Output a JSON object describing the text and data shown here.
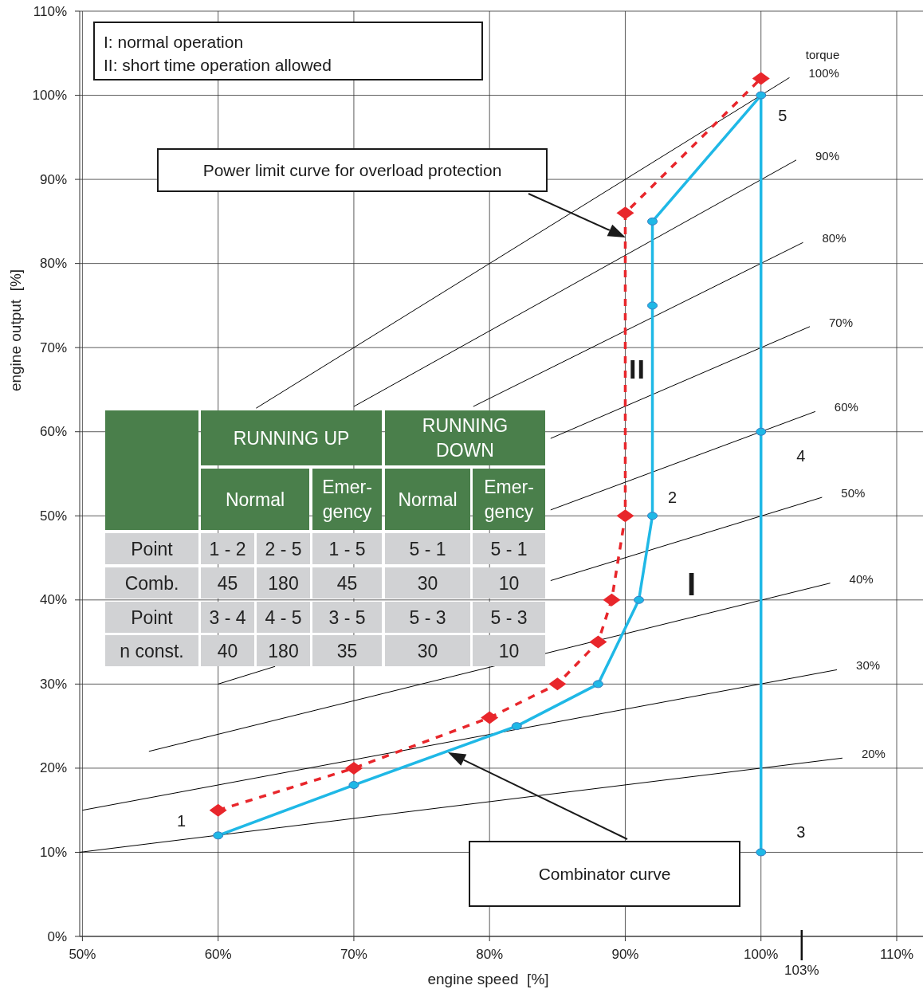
{
  "chart_data": [
    {
      "type": "line",
      "xlabel": "engine speed  [%]",
      "ylabel": "engine output  [%]",
      "xlim": [
        49.8,
        110
      ],
      "ylim": [
        0,
        110
      ],
      "xticks": [
        {
          "value": 50,
          "label": "50%"
        },
        {
          "value": 60,
          "label": "60%"
        },
        {
          "value": 70,
          "label": "70%"
        },
        {
          "value": 80,
          "label": "80%"
        },
        {
          "value": 90,
          "label": "90%"
        },
        {
          "value": 100,
          "label": "100%"
        },
        {
          "value": 110,
          "label": "110%"
        }
      ],
      "yticks": [
        {
          "value": 0,
          "label": "0%"
        },
        {
          "value": 10,
          "label": "10%"
        },
        {
          "value": 20,
          "label": "20%"
        },
        {
          "value": 30,
          "label": "30%"
        },
        {
          "value": 40,
          "label": "40%"
        },
        {
          "value": 50,
          "label": "50%"
        },
        {
          "value": 60,
          "label": "60%"
        },
        {
          "value": 70,
          "label": "70%"
        },
        {
          "value": 80,
          "label": "80%"
        },
        {
          "value": 90,
          "label": "90%"
        },
        {
          "value": 100,
          "label": "100%"
        },
        {
          "value": 110,
          "label": "110%"
        }
      ],
      "grid": true,
      "ref_lines": [
        {
          "axis": "x",
          "value": 103,
          "label": "103%"
        }
      ],
      "series": [
        {
          "name": "100%",
          "color": "#000000",
          "marker": "none",
          "line_style": "solid",
          "x": [
            62.8,
            102.1
          ],
          "values": [
            62.8,
            102.1
          ]
        },
        {
          "name": "90%",
          "color": "#000000",
          "marker": "none",
          "line_style": "solid",
          "x": [
            70,
            102.6
          ],
          "values": [
            63,
            92.3
          ]
        },
        {
          "name": "80%",
          "color": "#000000",
          "marker": "none",
          "line_style": "solid",
          "x": [
            78.8,
            103.1
          ],
          "values": [
            63,
            82.5
          ]
        },
        {
          "name": "70%",
          "color": "#000000",
          "marker": "none",
          "line_style": "solid",
          "x": [
            84.5,
            103.6
          ],
          "values": [
            59.2,
            72.5
          ]
        },
        {
          "name": "60%",
          "color": "#000000",
          "marker": "none",
          "line_style": "solid",
          "x": [
            84.5,
            104
          ],
          "values": [
            50.7,
            62.4
          ]
        },
        {
          "name": "50%",
          "color": "#000000",
          "marker": "none",
          "line_style": "solid",
          "x": [
            60,
            64.2,
            73,
            84.5,
            104.5
          ],
          "values": [
            30,
            32.1,
            null,
            42.3,
            52.2
          ]
        },
        {
          "name": "40%",
          "color": "#000000",
          "marker": "none",
          "line_style": "solid",
          "x": [
            54.9,
            105.1
          ],
          "values": [
            22,
            42
          ]
        },
        {
          "name": "30%",
          "color": "#000000",
          "marker": "none",
          "line_style": "solid",
          "x": [
            50,
            105.6
          ],
          "values": [
            15,
            31.7
          ]
        },
        {
          "name": "20%",
          "color": "#000000",
          "marker": "none",
          "line_style": "solid",
          "x": [
            49.8,
            106
          ],
          "values": [
            10,
            21.2
          ]
        },
        {
          "color": "#e8262b",
          "marker": "diamond",
          "line_style": "dashed",
          "x": [
            60,
            70,
            80,
            85,
            88,
            89,
            90,
            90,
            100
          ],
          "values": [
            15,
            20,
            26,
            30,
            35,
            40,
            50,
            86,
            102
          ]
        },
        {
          "color": "#1fb8e6",
          "marker": "circle",
          "line_style": "solid",
          "x": [
            60,
            70,
            82,
            88,
            91,
            92,
            92,
            92,
            100,
            100,
            100
          ],
          "values": [
            12,
            18,
            25,
            30,
            40,
            50,
            75,
            85,
            100,
            60,
            10
          ]
        }
      ],
      "annotations": [
        "I: normal operation\nII: short time operation allowed",
        "Power limit curve for overload protection",
        "Combinator curve",
        {
          "text": "1",
          "x": 60,
          "y": 12
        },
        {
          "text": "2",
          "x": 92,
          "y": 50
        },
        {
          "text": "3",
          "x": 100,
          "y": 10
        },
        {
          "text": "4",
          "x": 100,
          "y": 60
        },
        {
          "text": "5",
          "x": 100,
          "y": 100
        },
        "I",
        "II",
        "torque"
      ]
    },
    {
      "type": "other",
      "annotations": [
        "RUNNING UP",
        "RUNNING\nDOWN",
        "Normal",
        "Emer-\ngency",
        "Normal",
        "Emer-\ngency",
        "Point",
        "1 - 2",
        "2 - 5",
        "1 - 5",
        "5 - 1",
        "5 - 1",
        "Comb.",
        "45",
        "180",
        "45",
        "30",
        "10",
        "Point",
        "3 - 4",
        "4 - 5",
        "3 - 5",
        "5 - 3",
        "5 - 3",
        "n const.",
        "40",
        "180",
        "35",
        "30",
        "10"
      ]
    }
  ]
}
